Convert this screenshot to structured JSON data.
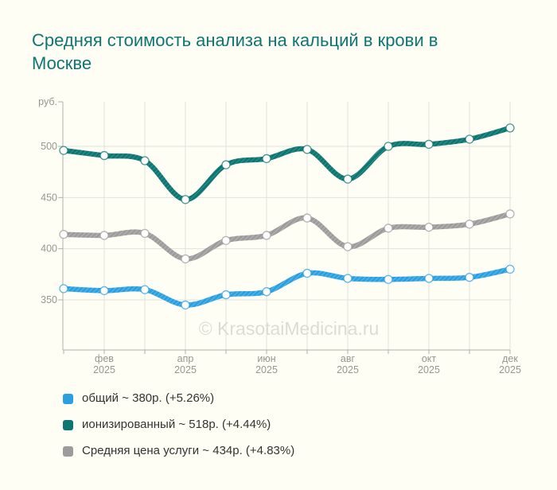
{
  "header": {
    "title": "Средняя стоимость анализа на кальций в крови в Москве"
  },
  "watermark": "© KrasotaiMedicina.ru",
  "chart_data": {
    "type": "line",
    "title": "Средняя стоимость анализа на кальций в крови в Москве",
    "ylabel": "руб.",
    "xlabel": "",
    "y_ticks": [
      350,
      400,
      450,
      500
    ],
    "ylim": [
      301,
      544
    ],
    "grid": true,
    "n_points": 12,
    "x_tick_labels": [
      {
        "month": "фев",
        "year": "2025",
        "index": 1
      },
      {
        "month": "апр",
        "year": "2025",
        "index": 3
      },
      {
        "month": "июн",
        "year": "2025",
        "index": 5
      },
      {
        "month": "авг",
        "year": "2025",
        "index": 7
      },
      {
        "month": "окт",
        "year": "2025",
        "index": 9
      },
      {
        "month": "дек",
        "year": "2025",
        "index": 11
      }
    ],
    "series": [
      {
        "name": "общий",
        "color": "#2aa0e1",
        "hatch_color": "#6bc0ec",
        "current_value": "380р.",
        "change": "+5.26%",
        "values": [
          361,
          359,
          360,
          345,
          355,
          358,
          376,
          371,
          370,
          371,
          372,
          380
        ]
      },
      {
        "name": "ионизированный",
        "color": "#0d7672",
        "hatch_color": "#3e948f",
        "current_value": "518р.",
        "change": "+4.44%",
        "values": [
          496,
          491,
          486,
          448,
          482,
          488,
          497,
          468,
          500,
          502,
          507,
          518
        ]
      },
      {
        "name": "Средняя цена услуги",
        "color": "#9c9c9c",
        "hatch_color": "#bdbdbd",
        "current_value": "434р.",
        "change": "+4.83%",
        "values": [
          414,
          413,
          415,
          390,
          408,
          413,
          430,
          402,
          420,
          421,
          424,
          434
        ]
      }
    ],
    "legend_position": "bottom-left"
  },
  "legend": {
    "items": [
      {
        "label": "общий ~ 380р. (+5.26%)",
        "color": "#2aa0e1"
      },
      {
        "label": "ионизированный ~ 518р. (+4.44%)",
        "color": "#0d7672"
      },
      {
        "label": "Средняя цена услуги ~ 434р. (+4.83%)",
        "color": "#9c9c9c"
      }
    ]
  },
  "colors": {
    "background": "#fffef5",
    "title": "#0e7572",
    "grid": "#e2e2dc",
    "axis": "#b0b0aa",
    "tick_label": "#969692",
    "watermark": "#dcdcd6",
    "legend_text": "#333333"
  }
}
